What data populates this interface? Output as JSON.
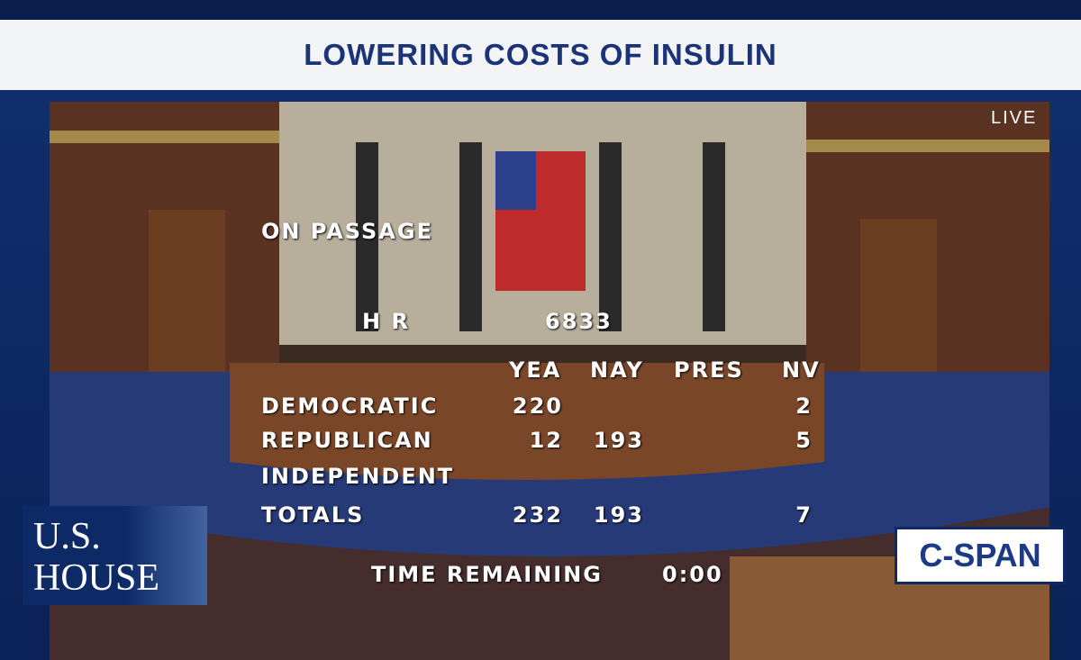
{
  "header": {
    "title": "LOWERING COSTS OF INSULIN"
  },
  "live": "LIVE",
  "board": {
    "heading": "ON PASSAGE",
    "bill_prefix": "H R",
    "bill_number": 6833,
    "columns": [
      "YEA",
      "NAY",
      "PRES",
      "NV"
    ],
    "rows": [
      {
        "party": "DEMOCRATIC",
        "cells": [
          220,
          null,
          null,
          2
        ]
      },
      {
        "party": "REPUBLICAN",
        "cells": [
          12,
          193,
          null,
          5
        ]
      },
      {
        "party": "INDEPENDENT",
        "cells": [
          null,
          null,
          null,
          null
        ]
      },
      {
        "party": "TOTALS",
        "cells": [
          232,
          193,
          null,
          7
        ]
      }
    ],
    "time_label": "TIME REMAINING",
    "time_value": "0:00"
  },
  "logos": {
    "house_line1": "U.S.",
    "house_line2": "HOUSE",
    "network": "C-SPAN"
  }
}
